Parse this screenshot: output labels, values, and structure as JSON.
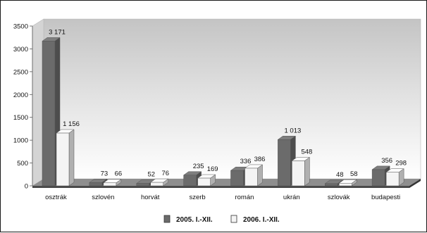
{
  "chart_data": {
    "type": "bar",
    "title": "",
    "xlabel": "",
    "ylabel": "",
    "ylim": [
      0,
      3500
    ],
    "yticks": [
      0,
      500,
      1000,
      1500,
      2000,
      2500,
      3000,
      3500
    ],
    "grid": false,
    "legend_position": "bottom",
    "categories": [
      "osztrák",
      "szlovén",
      "horvát",
      "szerb",
      "román",
      "ukrán",
      "szlovák",
      "budapesti"
    ],
    "series": [
      {
        "name": "2005. I.-XII.",
        "values": [
          3171,
          73,
          52,
          235,
          336,
          1013,
          48,
          356
        ],
        "labels": [
          "3 171",
          "73",
          "52",
          "235",
          "336",
          "1 013",
          "48",
          "356"
        ],
        "color": "#6b6b6b"
      },
      {
        "name": "2006. I.-XII.",
        "values": [
          1156,
          66,
          76,
          169,
          386,
          548,
          58,
          298
        ],
        "labels": [
          "1 156",
          "66",
          "76",
          "169",
          "386",
          "548",
          "58",
          "298"
        ],
        "color": "#f4f4f4"
      }
    ]
  }
}
